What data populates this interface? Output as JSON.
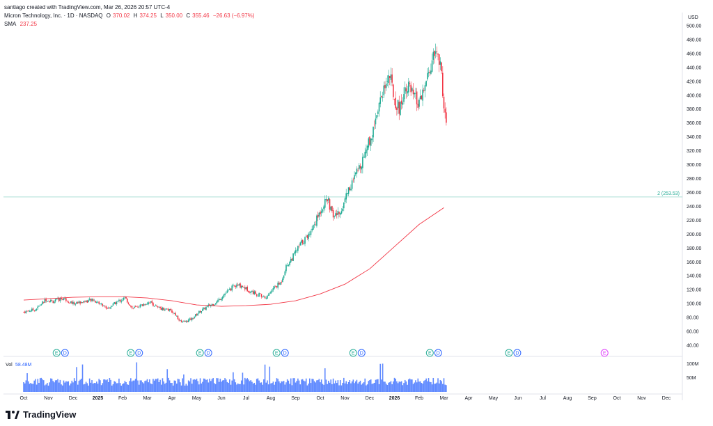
{
  "header": {
    "created_line": "santiago created with TradingView.com, Mar 26, 2026 20:57 UTC-4",
    "symbol": "Micron Technology, Inc. · 1D · NASDAQ",
    "ohlc": {
      "o_label": "O",
      "o": "370.02",
      "h_label": "H",
      "h": "374.25",
      "l_label": "L",
      "l": "350.00",
      "c_label": "C",
      "c": "355.46",
      "change": "−26.63 (−6.97%)"
    },
    "sma_label": "SMA",
    "sma_value": "237.25"
  },
  "axis": {
    "currency": "USD",
    "ticks": [
      "500.00",
      "480.00",
      "460.00",
      "440.00",
      "420.00",
      "400.00",
      "380.00",
      "360.00",
      "340.00",
      "320.00",
      "300.00",
      "280.00",
      "260.00",
      "240.00",
      "220.00",
      "200.00",
      "180.00",
      "160.00",
      "140.00",
      "120.00",
      "100.00",
      "80.00",
      "60.00",
      "40.00"
    ],
    "months": [
      "Oct",
      "Nov",
      "Dec",
      "2025",
      "Feb",
      "Mar",
      "Apr",
      "May",
      "Jun",
      "Jul",
      "Aug",
      "Sep",
      "Oct",
      "Nov",
      "Dec",
      "2026",
      "Feb",
      "Mar",
      "Apr",
      "May",
      "Jun",
      "Jul",
      "Aug",
      "Sep",
      "Oct",
      "Nov",
      "Dec"
    ],
    "vol_ticks": [
      "100M",
      "50M"
    ]
  },
  "hline": {
    "label": "2 (253.53)",
    "value": 253.53
  },
  "volume": {
    "label": "Vol",
    "value": "58.48M"
  },
  "events": [
    {
      "letters": [
        "E",
        "D"
      ],
      "month": 1.5
    },
    {
      "letters": [
        "E",
        "D"
      ],
      "month": 4.5
    },
    {
      "letters": [
        "E",
        "D"
      ],
      "month": 7.3
    },
    {
      "letters": [
        "E",
        "D"
      ],
      "month": 10.4
    },
    {
      "letters": [
        "E",
        "D"
      ],
      "month": 13.5
    },
    {
      "letters": [
        "E",
        "D"
      ],
      "month": 16.6
    },
    {
      "letters": [
        "E",
        "D"
      ],
      "month": 19.8
    },
    {
      "letters": [
        "E"
      ],
      "month": 23.5
    }
  ],
  "colors": {
    "up": "#22ab94",
    "down": "#f23645",
    "sma": "#f23645",
    "hline": "#22ab94",
    "future_event": "#e040fb",
    "volume": "#2962ff"
  },
  "branding": "TradingView",
  "chart_data": {
    "type": "candlestick",
    "title": "Micron Technology, Inc. · 1D · NASDAQ",
    "ylabel": "USD",
    "ylim": [
      40,
      500
    ],
    "x_unit": "months since Oct 2024 start",
    "candles_close": [
      [
        0.0,
        88
      ],
      [
        0.5,
        92
      ],
      [
        0.9,
        106
      ],
      [
        1.2,
        103
      ],
      [
        1.6,
        108
      ],
      [
        2.0,
        100
      ],
      [
        2.4,
        103
      ],
      [
        2.8,
        105
      ],
      [
        3.1,
        100
      ],
      [
        3.4,
        93
      ],
      [
        3.8,
        103
      ],
      [
        4.1,
        108
      ],
      [
        4.4,
        93
      ],
      [
        4.8,
        98
      ],
      [
        5.1,
        103
      ],
      [
        5.4,
        94
      ],
      [
        5.8,
        92
      ],
      [
        6.1,
        86
      ],
      [
        6.4,
        72
      ],
      [
        6.8,
        78
      ],
      [
        7.1,
        88
      ],
      [
        7.5,
        97
      ],
      [
        7.8,
        102
      ],
      [
        8.1,
        113
      ],
      [
        8.5,
        125
      ],
      [
        8.8,
        126
      ],
      [
        9.1,
        119
      ],
      [
        9.5,
        113
      ],
      [
        9.8,
        108
      ],
      [
        10.1,
        122
      ],
      [
        10.4,
        130
      ],
      [
        10.6,
        152
      ],
      [
        10.9,
        168
      ],
      [
        11.2,
        186
      ],
      [
        11.5,
        198
      ],
      [
        11.8,
        218
      ],
      [
        12.1,
        241
      ],
      [
        12.3,
        250
      ],
      [
        12.5,
        226
      ],
      [
        12.8,
        230
      ],
      [
        13.1,
        262
      ],
      [
        13.3,
        274
      ],
      [
        13.6,
        298
      ],
      [
        13.9,
        328
      ],
      [
        14.1,
        344
      ],
      [
        14.3,
        380
      ],
      [
        14.6,
        414
      ],
      [
        14.8,
        430
      ],
      [
        15.0,
        394
      ],
      [
        15.2,
        380
      ],
      [
        15.5,
        418
      ],
      [
        15.7,
        402
      ],
      [
        16.0,
        385
      ],
      [
        16.3,
        420
      ],
      [
        16.5,
        445
      ],
      [
        16.7,
        466
      ],
      [
        16.9,
        432
      ],
      [
        17.0,
        385
      ],
      [
        17.1,
        355
      ]
    ],
    "sma": [
      [
        0.0,
        105
      ],
      [
        1.0,
        107
      ],
      [
        2.0,
        109
      ],
      [
        3.0,
        110
      ],
      [
        4.0,
        110
      ],
      [
        5.0,
        108
      ],
      [
        6.0,
        104
      ],
      [
        7.0,
        98
      ],
      [
        8.0,
        96
      ],
      [
        9.0,
        97
      ],
      [
        10.0,
        99
      ],
      [
        11.0,
        104
      ],
      [
        12.0,
        114
      ],
      [
        13.0,
        128
      ],
      [
        14.0,
        150
      ],
      [
        15.0,
        182
      ],
      [
        16.0,
        214
      ],
      [
        17.0,
        238
      ]
    ],
    "volume_series_peak": "100M"
  }
}
